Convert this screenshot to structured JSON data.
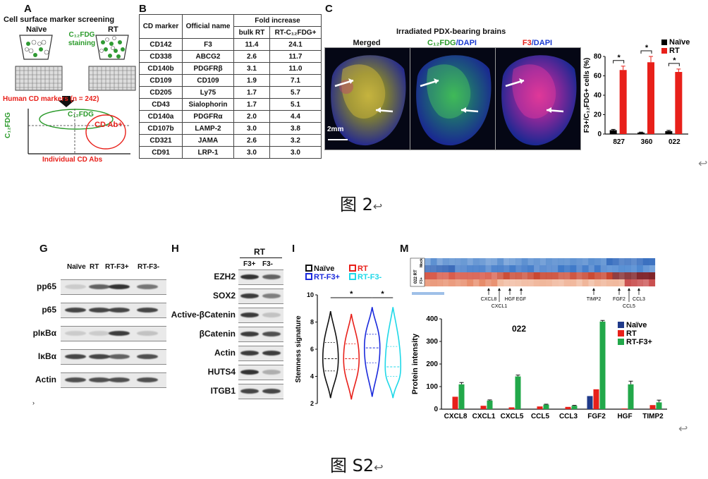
{
  "panelA": {
    "letter": "A",
    "title": "Cell surface marker screening",
    "naive_label": "Naïve",
    "rt_label": "RT",
    "staining_label": "C₁₂FDG staining",
    "markers_label": "Human CD markers (n = 242)",
    "gate_label": "C₁₂FDG",
    "cdab_label": "CD Ab+",
    "yaxis_label": "C₁₂FDG",
    "xaxis_label": "Individual CD Abs"
  },
  "panelB": {
    "letter": "B",
    "headers": {
      "cd": "CD marker",
      "official": "Official name",
      "fold": "Fold increase",
      "bulk": "bulk RT",
      "rtc": "RT-C₁₂FDG+"
    },
    "rows": [
      {
        "cd": "CD142",
        "name": "F3",
        "bulk": "11.4",
        "rtc": "24.1"
      },
      {
        "cd": "CD338",
        "name": "ABCG2",
        "bulk": "2.6",
        "rtc": "11.7"
      },
      {
        "cd": "CD140b",
        "name": "PDGFRβ",
        "bulk": "3.1",
        "rtc": "11.0"
      },
      {
        "cd": "CD109",
        "name": "CD109",
        "bulk": "1.9",
        "rtc": "7.1"
      },
      {
        "cd": "CD205",
        "name": "Ly75",
        "bulk": "1.7",
        "rtc": "5.7"
      },
      {
        "cd": "CD43",
        "name": "Sialophorin",
        "bulk": "1.7",
        "rtc": "5.1"
      },
      {
        "cd": "CD140a",
        "name": "PDGFRα",
        "bulk": "2.0",
        "rtc": "4.4"
      },
      {
        "cd": "CD107b",
        "name": "LAMP-2",
        "bulk": "3.0",
        "rtc": "3.8"
      },
      {
        "cd": "CD321",
        "name": "JAMA",
        "bulk": "2.6",
        "rtc": "3.2"
      },
      {
        "cd": "CD91",
        "name": "LRP-1",
        "bulk": "3.0",
        "rtc": "3.0"
      }
    ]
  },
  "panelC": {
    "letter": "C",
    "title": "Irradiated PDX-bearing brains",
    "merged": "Merged",
    "c12fdg": "C₁₂FDG",
    "dapi": "/DAPI",
    "f3": "F3",
    "scalebar": "2mm"
  },
  "panelG": {
    "letter": "G",
    "lanes": [
      "Naïve",
      "RT",
      "RT-F3+",
      "RT-F3-"
    ],
    "rows": [
      "pp65",
      "p65",
      "pIκBα",
      "IκBα",
      "Actin"
    ],
    "footnote": "›"
  },
  "panelH": {
    "letter": "H",
    "group": "RT",
    "lanes": [
      "F3+",
      "F3-"
    ],
    "rows": [
      "EZH2",
      "SOX2",
      "Active-βCatenin",
      "βCatenin",
      "Actin",
      "HUTS4",
      "ITGB1"
    ]
  },
  "panelI": {
    "letter": "I",
    "legend": [
      "Naïve",
      "RT",
      "RT-F3+",
      "RT-F3-"
    ],
    "star": "*"
  },
  "panelM": {
    "letter": "M",
    "heat_row_labels": [
      "Mock",
      "RT",
      "F3+"
    ],
    "heat_group": "022 RT",
    "gene_marks_top": [
      "CXCL8",
      "HGF",
      "EGF",
      "TIMP2",
      "FGF2",
      "CCL3"
    ],
    "gene_marks_bottom": [
      "CXCL1",
      "CCL5"
    ]
  },
  "captions": {
    "fig2": "图 2",
    "figS2": "图 S2"
  },
  "chart_data": [
    {
      "type": "bar",
      "panel": "C",
      "title": "",
      "ylabel": "F3+/C₁₂FDG+ cells (%)",
      "xlabel": "",
      "categories": [
        "827",
        "360",
        "022"
      ],
      "series": [
        {
          "name": "Naïve",
          "color": "#000000",
          "values": [
            4,
            1.5,
            3
          ],
          "errors": [
            0.8,
            0.5,
            0.8
          ]
        },
        {
          "name": "RT",
          "color": "#e8201a",
          "values": [
            66,
            74,
            64
          ],
          "errors": [
            4,
            6,
            3
          ]
        }
      ],
      "ylim": [
        0,
        80
      ],
      "yticks": [
        0,
        20,
        40,
        60,
        80
      ],
      "significance": [
        "*",
        "*",
        "*"
      ],
      "legend": "top-right"
    },
    {
      "type": "violin",
      "panel": "I",
      "ylabel": "Stemness signature",
      "ylim": [
        2,
        10
      ],
      "yticks": [
        2,
        4,
        6,
        8,
        10
      ],
      "groups": [
        {
          "name": "Naïve",
          "color": "#111111",
          "median": 5.3,
          "q1": 4.4,
          "q3": 6.5,
          "min": 2.4,
          "max": 8.8
        },
        {
          "name": "RT",
          "color": "#e8201a",
          "median": 5.3,
          "q1": 4.5,
          "q3": 6.4,
          "min": 2.3,
          "max": 8.6
        },
        {
          "name": "RT-F3+",
          "color": "#1a2adc",
          "median": 6.1,
          "q1": 5.0,
          "q3": 7.1,
          "min": 2.5,
          "max": 9.1
        },
        {
          "name": "RT-F3-",
          "color": "#1fd8e8",
          "median": 4.7,
          "q1": 4.0,
          "q3": 6.2,
          "min": 2.4,
          "max": 9.1
        }
      ],
      "significance": [
        {
          "from": "Naïve",
          "to": "RT-F3+",
          "label": "*"
        },
        {
          "from": "RT-F3+",
          "to": "RT-F3-",
          "label": "*"
        }
      ]
    },
    {
      "type": "bar",
      "panel": "M",
      "title": "022",
      "ylabel": "Protein intensity",
      "xlabel": "",
      "categories": [
        "CXCL8",
        "CXCL1",
        "CXCL5",
        "CCL5",
        "CCL3",
        "FGF2",
        "HGF",
        "TIMP2"
      ],
      "series": [
        {
          "name": "Naïve",
          "color": "#1f3a8a",
          "values": [
            0,
            0,
            0,
            0,
            0,
            58,
            0,
            0
          ]
        },
        {
          "name": "RT",
          "color": "#e8201a",
          "values": [
            55,
            15,
            8,
            12,
            10,
            88,
            3,
            18
          ]
        },
        {
          "name": "RT-F3+",
          "color": "#22a84a",
          "values": [
            110,
            38,
            145,
            20,
            15,
            388,
            110,
            30
          ]
        }
      ],
      "errors": [
        8,
        3,
        6,
        2,
        2,
        5,
        14,
        10
      ],
      "ylim": [
        0,
        400
      ],
      "yticks": [
        0,
        100,
        200,
        300,
        400
      ],
      "legend": "top-right"
    }
  ]
}
